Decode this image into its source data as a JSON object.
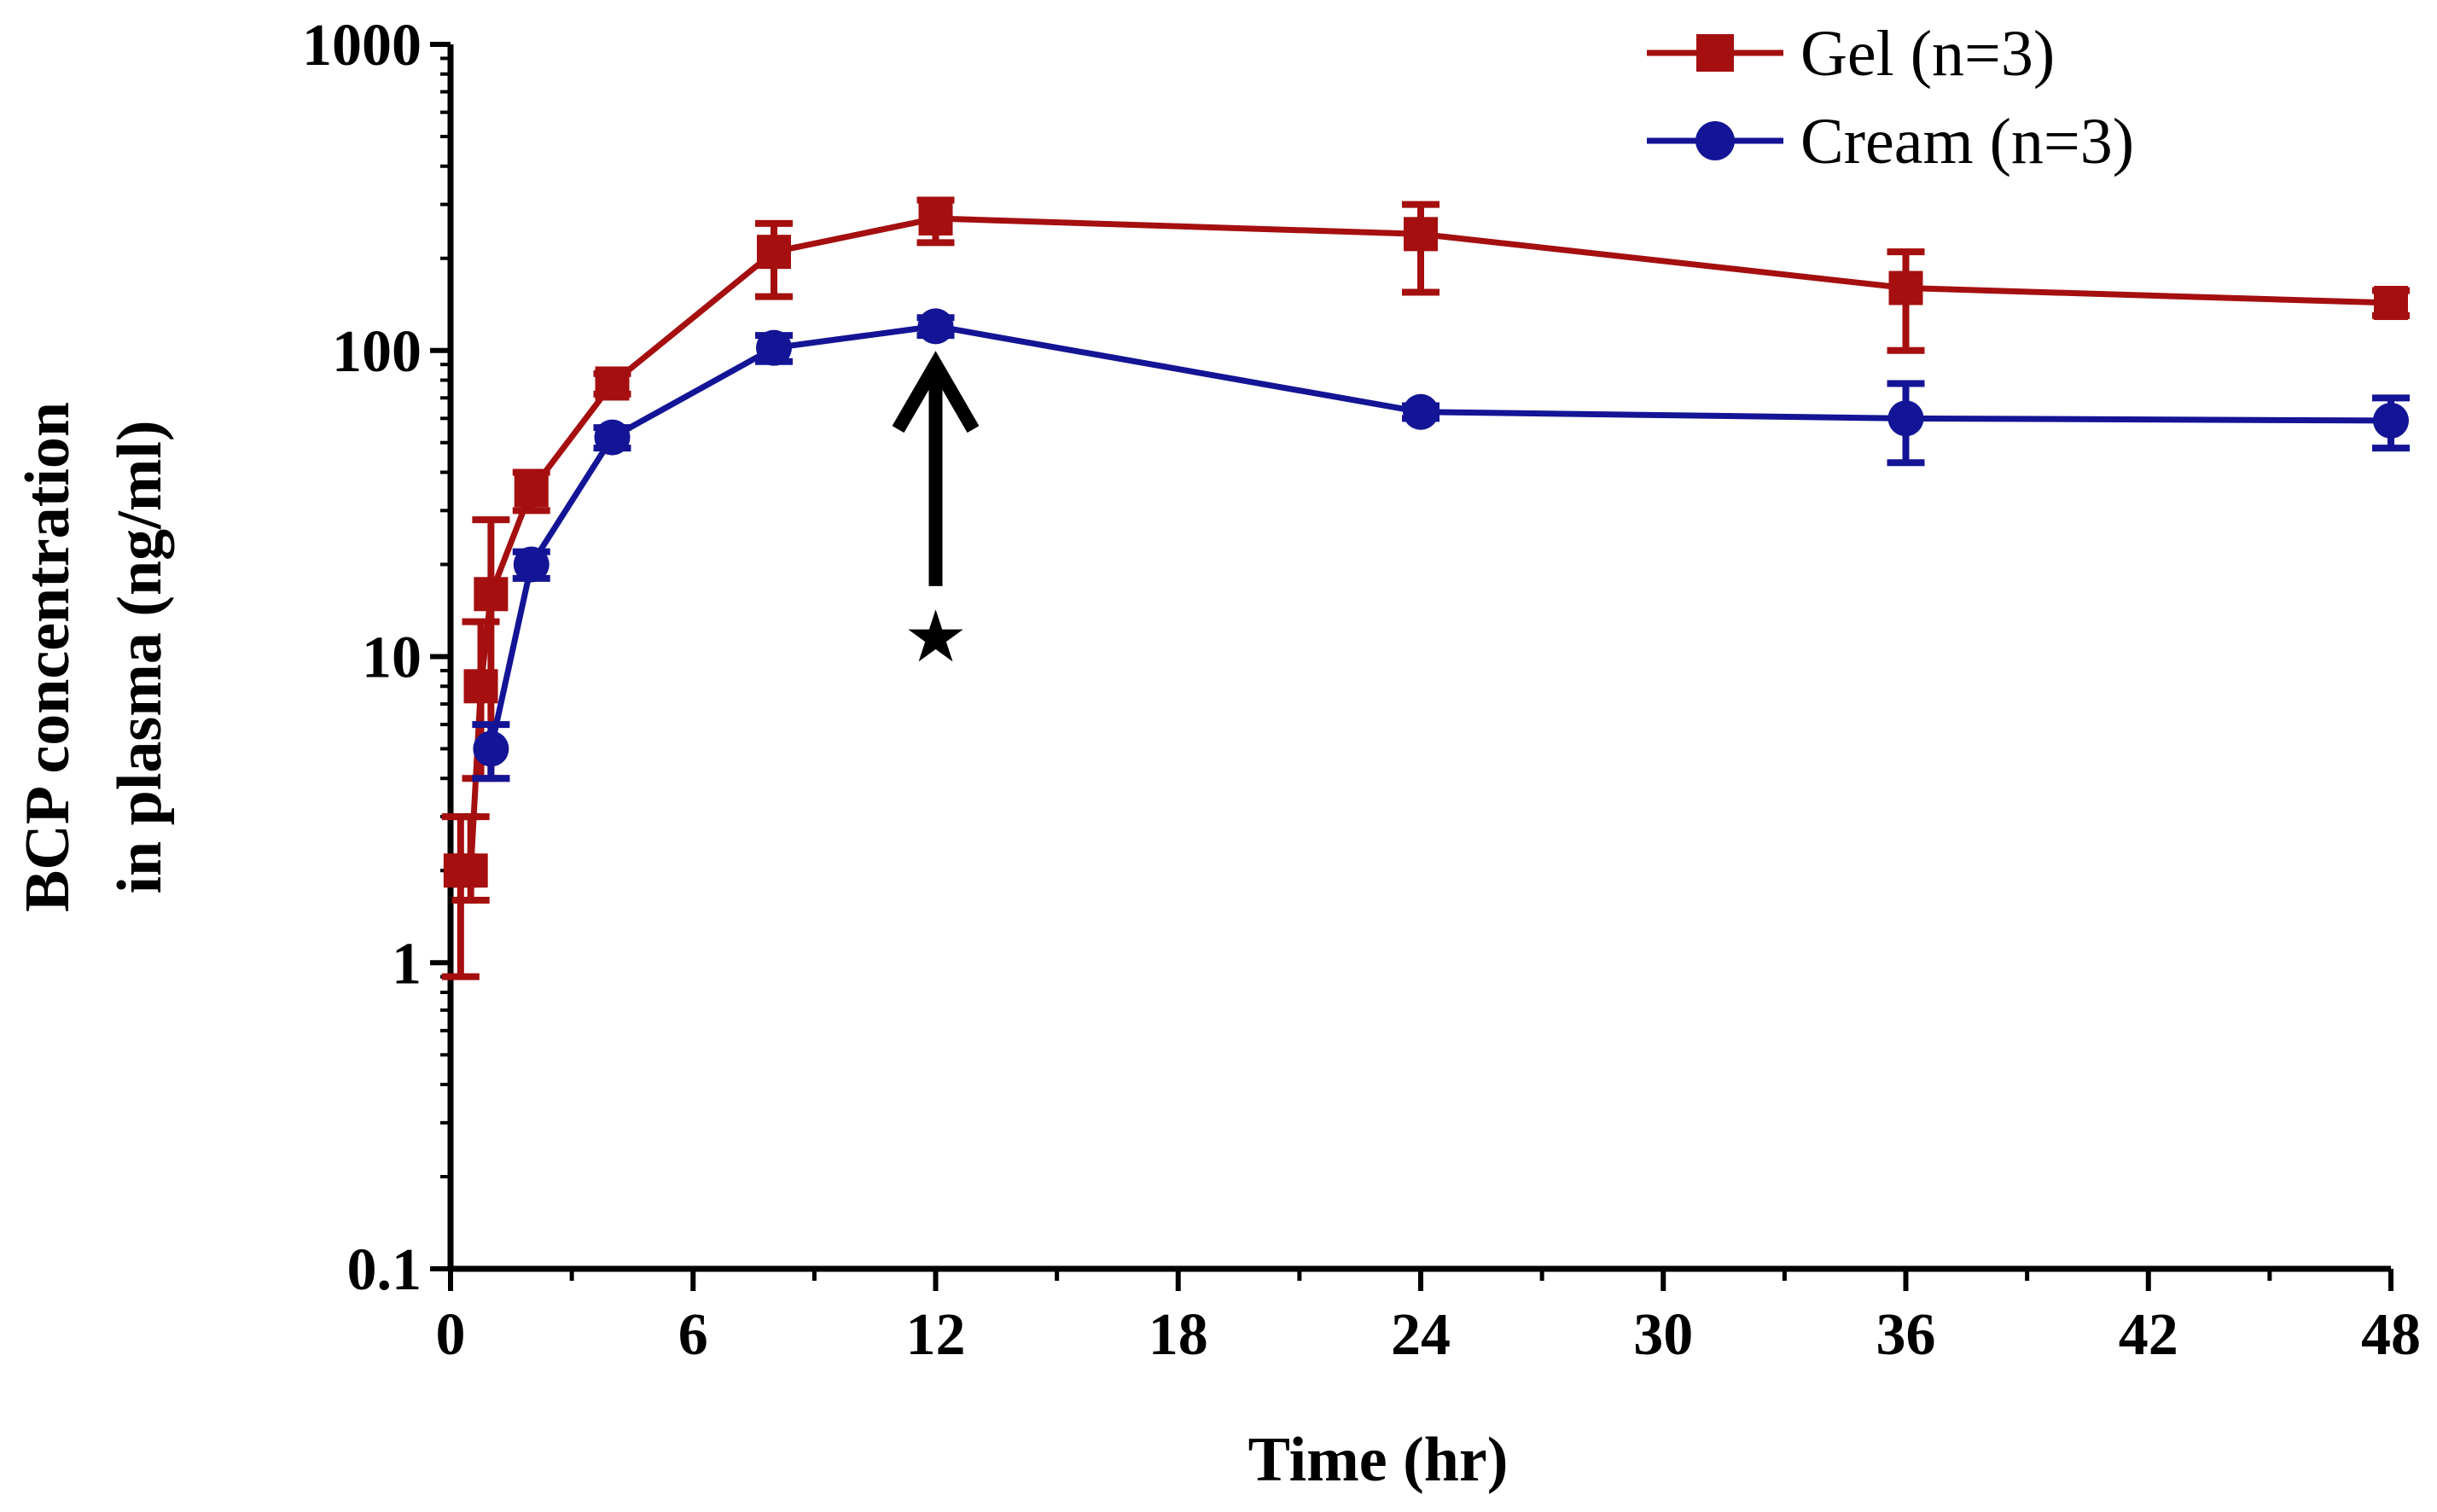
{
  "chart_data": {
    "type": "line",
    "title": "",
    "xlabel": "Time (hr)",
    "ylabel_line1": "BCP concentration",
    "ylabel_line2": "in plasma (ng/ml)",
    "yscale": "log",
    "xlim": [
      0,
      48
    ],
    "ylim": [
      0.1,
      1000
    ],
    "xticks": [
      0,
      6,
      12,
      18,
      24,
      30,
      36,
      42,
      48
    ],
    "xtick_labels": [
      "0",
      "6",
      "12",
      "18",
      "24",
      "30",
      "36",
      "42",
      "48"
    ],
    "yticks": [
      0.1,
      1,
      10,
      100,
      1000
    ],
    "ytick_labels": [
      "0.1",
      "1",
      "10",
      "100",
      "1000"
    ],
    "legend_position": "top-right",
    "series": [
      {
        "name": "Gel (n=3)",
        "color": "#a50f0f",
        "marker": "square",
        "x": [
          0.25,
          0.5,
          0.75,
          1,
          2,
          4,
          8,
          12,
          24,
          36,
          48
        ],
        "y": [
          2,
          2,
          8,
          16,
          35,
          78,
          210,
          270,
          240,
          160,
          143
        ],
        "err_low": [
          0.9,
          1.6,
          4,
          4,
          30,
          72,
          150,
          225,
          155,
          100,
          130
        ],
        "err_high": [
          3,
          3,
          13,
          28,
          40,
          84,
          260,
          310,
          300,
          210,
          157
        ]
      },
      {
        "name": "Cream (n=3)",
        "color": "#141496",
        "marker": "circle",
        "x": [
          1,
          2,
          4,
          8,
          12,
          24,
          36,
          48
        ],
        "y": [
          5,
          20,
          52,
          102,
          120,
          63,
          60,
          59
        ],
        "err_low": [
          4,
          18,
          48,
          92,
          112,
          60,
          43,
          48
        ],
        "err_high": [
          6,
          22,
          56,
          112,
          128,
          66,
          78,
          70
        ]
      }
    ],
    "annotations": [
      {
        "type": "arrow",
        "x": 12,
        "y_tip": 90,
        "y_tail": 17,
        "label": "★"
      }
    ]
  }
}
